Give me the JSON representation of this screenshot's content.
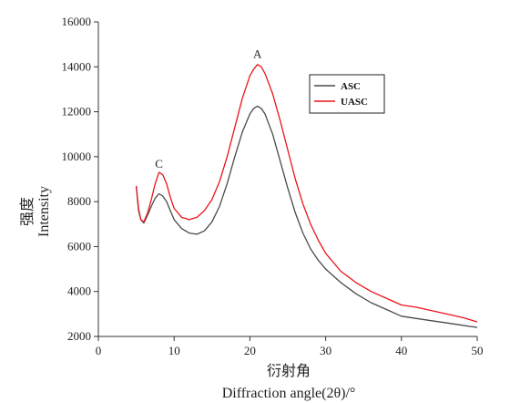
{
  "chart_data": {
    "type": "line",
    "xlabel_cn": "衍射角",
    "xlabel": "Diffraction angle(2θ)/°",
    "ylabel_cn": "强度",
    "ylabel": "Intensity",
    "xlim": [
      0,
      50
    ],
    "ylim": [
      2000,
      16000
    ],
    "x_ticks": [
      0,
      10,
      20,
      30,
      40,
      50
    ],
    "y_ticks": [
      2000,
      4000,
      6000,
      8000,
      10000,
      12000,
      14000,
      16000
    ],
    "legend_position": "top-right",
    "annotations": [
      {
        "text": "A",
        "x": 21,
        "y": 14400
      },
      {
        "text": "C",
        "x": 8,
        "y": 9500
      }
    ],
    "series": [
      {
        "name": "ASC",
        "color": "#4a4a4a",
        "x": [
          5,
          5.3,
          5.6,
          6,
          6.5,
          7,
          7.5,
          8,
          8.5,
          9,
          9.5,
          10,
          11,
          12,
          13,
          14,
          15,
          16,
          17,
          18,
          19,
          20,
          20.5,
          21,
          21.5,
          22,
          23,
          24,
          25,
          26,
          27,
          28,
          29,
          30,
          32,
          34,
          36,
          38,
          40,
          42,
          44,
          46,
          48,
          50
        ],
        "y": [
          8700,
          7600,
          7200,
          7050,
          7400,
          7800,
          8150,
          8350,
          8250,
          8000,
          7600,
          7200,
          6800,
          6600,
          6550,
          6700,
          7100,
          7800,
          8800,
          10000,
          11100,
          11900,
          12150,
          12250,
          12150,
          11900,
          11000,
          9800,
          8600,
          7500,
          6600,
          5900,
          5400,
          5000,
          4400,
          3900,
          3500,
          3200,
          2900,
          2800,
          2700,
          2600,
          2500,
          2400
        ]
      },
      {
        "name": "UASC",
        "color": "#e8141c",
        "x": [
          5,
          5.3,
          5.6,
          6,
          6.5,
          7,
          7.5,
          8,
          8.5,
          9,
          9.5,
          10,
          11,
          12,
          13,
          14,
          15,
          16,
          17,
          18,
          19,
          20,
          20.5,
          21,
          21.5,
          22,
          23,
          24,
          25,
          26,
          27,
          28,
          29,
          30,
          32,
          34,
          36,
          38,
          40,
          42,
          44,
          46,
          48,
          50
        ],
        "y": [
          8700,
          7700,
          7200,
          7100,
          7500,
          8100,
          8800,
          9300,
          9200,
          8800,
          8200,
          7700,
          7300,
          7200,
          7300,
          7600,
          8100,
          8900,
          10000,
          11300,
          12600,
          13600,
          13900,
          14100,
          14000,
          13700,
          12800,
          11600,
          10300,
          9000,
          7900,
          7000,
          6300,
          5700,
          4900,
          4400,
          4000,
          3700,
          3400,
          3300,
          3150,
          3000,
          2850,
          2650
        ]
      }
    ]
  }
}
